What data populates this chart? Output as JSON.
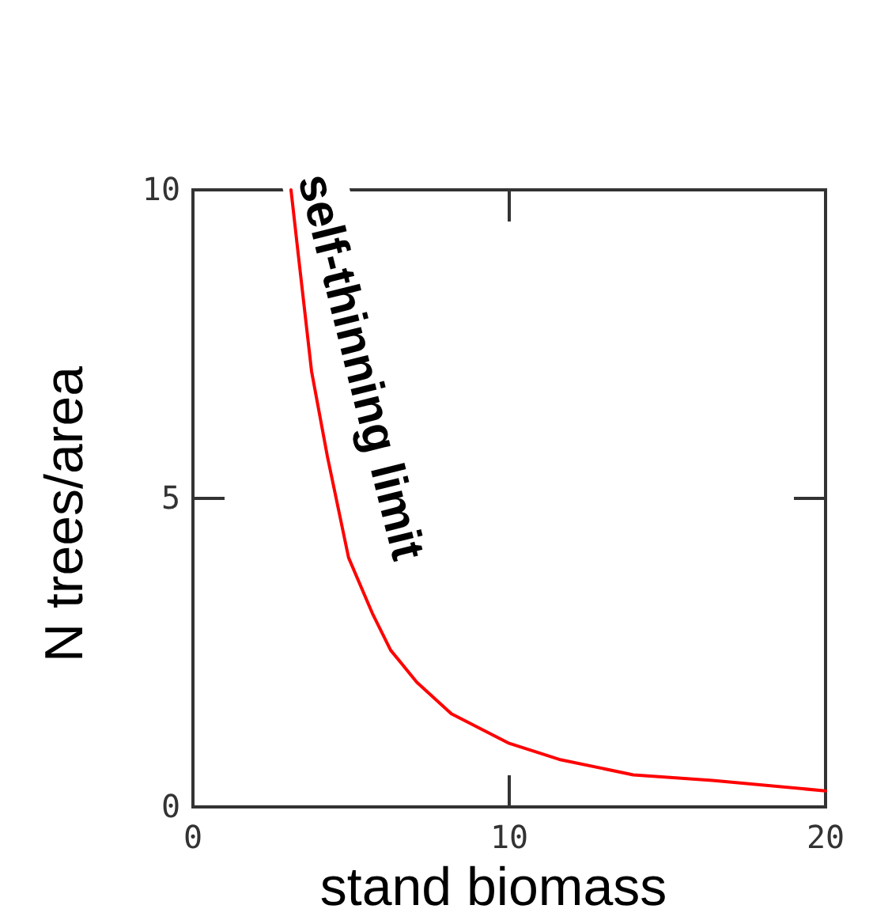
{
  "chart_data": {
    "type": "line",
    "xlabel": "stand biomass",
    "ylabel": "N trees/area",
    "annotations": [
      "self-thinning limit"
    ],
    "x": [
      3.1,
      3.33,
      3.75,
      4.25,
      4.92,
      5.67,
      6.25,
      7.08,
      8.17,
      10,
      11.58,
      13.92,
      16.42,
      20
    ],
    "series": [
      {
        "color": "#ff0000",
        "values": [
          10,
          8.95,
          7.06,
          5.68,
          4.04,
          3.14,
          2.54,
          2.02,
          1.51,
          1.03,
          0.77,
          0.52,
          0.43,
          0.26
        ]
      }
    ],
    "xlim": [
      0,
      20
    ],
    "ylim": [
      0,
      10
    ],
    "xticks": [
      0,
      10,
      20
    ],
    "yticks": [
      0,
      5,
      10
    ],
    "grid": false,
    "marker": "none",
    "line_style": "solid"
  }
}
